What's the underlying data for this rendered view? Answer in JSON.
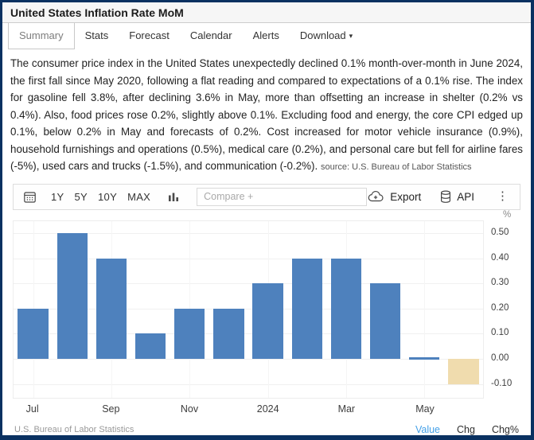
{
  "header": {
    "title": "United States Inflation Rate MoM"
  },
  "tabs": [
    {
      "label": "Summary",
      "active": true
    },
    {
      "label": "Stats"
    },
    {
      "label": "Forecast"
    },
    {
      "label": "Calendar"
    },
    {
      "label": "Alerts"
    },
    {
      "label": "Download"
    }
  ],
  "description": {
    "text": "The consumer price index in the United States unexpectedly declined 0.1% month-over-month in June 2024, the first fall since May 2020, following a flat reading and compared to expectations of a 0.1% rise. The index for gasoline fell 3.8%, after declining 3.6% in May, more than offsetting an increase in shelter (0.2% vs 0.4%). Also, food prices rose 0.2%, slightly above 0.1%. Excluding food and energy, the core CPI edged up 0.1%, below 0.2% in May and forecasts of 0.2%. Cost increased for motor vehicle insurance (0.9%), household furnishings and operations (0.5%), medical care (0.2%), and personal care but fell for airline fares (-5%), used cars and trucks (-1.5%), and communication (-0.2%).",
    "source_note": "source: U.S. Bureau of Labor Statistics"
  },
  "toolbar": {
    "ranges": [
      "1Y",
      "5Y",
      "10Y",
      "MAX"
    ],
    "compare_placeholder": "Compare +",
    "export_label": "Export",
    "api_label": "API"
  },
  "chart_data": {
    "type": "bar",
    "title": "United States Inflation Rate MoM",
    "unit": "%",
    "categories": [
      "Jul 2023",
      "Aug 2023",
      "Sep 2023",
      "Oct 2023",
      "Nov 2023",
      "Dec 2023",
      "Jan 2024",
      "Feb 2024",
      "Mar 2024",
      "Apr 2024",
      "May 2024",
      "Jun 2024"
    ],
    "values": [
      0.2,
      0.5,
      0.4,
      0.1,
      0.2,
      0.2,
      0.3,
      0.4,
      0.4,
      0.3,
      0.0,
      -0.1
    ],
    "x_tick_labels": [
      {
        "index": 0,
        "label": "Jul"
      },
      {
        "index": 2,
        "label": "Sep"
      },
      {
        "index": 4,
        "label": "Nov"
      },
      {
        "index": 6,
        "label": "2024"
      },
      {
        "index": 8,
        "label": "Mar"
      },
      {
        "index": 10,
        "label": "May"
      }
    ],
    "y_ticks": [
      "0.50",
      "0.40",
      "0.30",
      "0.20",
      "0.10",
      "0.00",
      "-0.10"
    ],
    "ylim": [
      -0.16,
      0.55
    ],
    "grid": true,
    "legend": "none",
    "bar_color": "#4e81bd",
    "highlight_color": "#f0dcae",
    "highlight_index": 11
  },
  "footer": {
    "source": "U.S. Bureau of Labor Statistics",
    "links": [
      {
        "label": "Value",
        "active": true
      },
      {
        "label": "Chg"
      },
      {
        "label": "Chg%"
      }
    ]
  }
}
